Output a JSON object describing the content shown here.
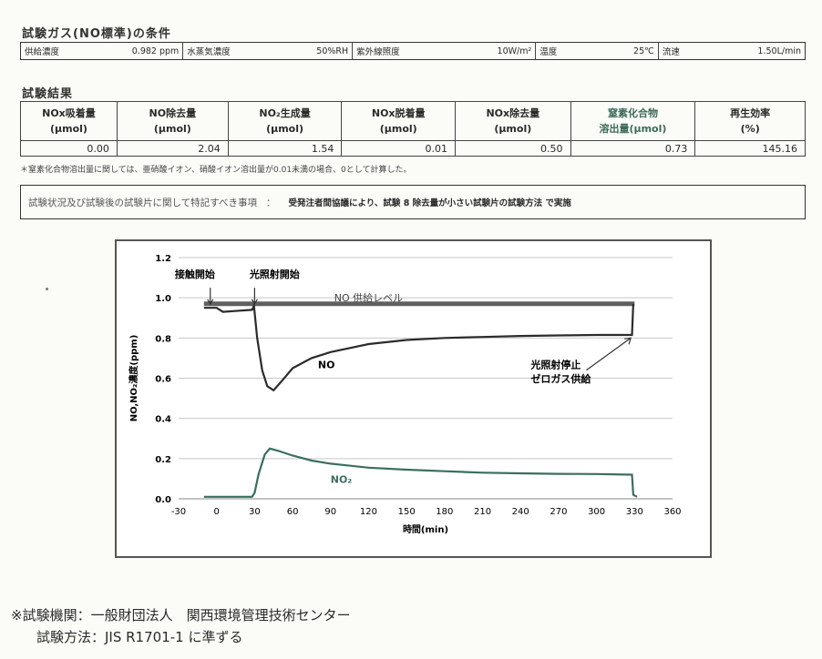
{
  "section_conditions_title": "試験ガス(NO標準)の条件",
  "conditions": [
    {
      "label": "供給濃度",
      "value": "0.982 ppm"
    },
    {
      "label": "水蒸気濃度",
      "value": "50%RH"
    },
    {
      "label": "紫外線照度",
      "value": "10W/m²"
    },
    {
      "label": "温度",
      "value": "25℃"
    },
    {
      "label": "流速",
      "value": "1.50L/min"
    }
  ],
  "section_results_title": "試験結果",
  "results": {
    "headers": [
      {
        "l1": "NOx吸着量",
        "l2": "(μmol)"
      },
      {
        "l1": "NO除去量",
        "l2": "(μmol)"
      },
      {
        "l1": "NO₂生成量",
        "l2": "(μmol)"
      },
      {
        "l1": "NOx脱着量",
        "l2": "(μmol)"
      },
      {
        "l1": "NOx除去量",
        "l2": "(μmol)"
      },
      {
        "l1": "窒素化合物",
        "l2": "溶出量(μmol)"
      },
      {
        "l1": "再生効率",
        "l2": "(%)"
      }
    ],
    "values": [
      "0.00",
      "2.04",
      "1.54",
      "0.01",
      "0.50",
      "0.73",
      "145.16"
    ]
  },
  "footnote": "＊窒素化合物溶出量に関しては、亜硝酸イオン、硝酸イオン溶出量が0.01未満の場合、0として計算した。",
  "special_notes": {
    "label": "試験状況及び試験後の試験片に関して特記すべき事項",
    "value": "受発注者間協議により、試験 8 除去量が小さい試験片の試験方法 で実施"
  },
  "chart_data": {
    "type": "line",
    "xlabel": "時間(min)",
    "ylabel": "NO,NO₂濃度(ppm)",
    "xlim": [
      -30,
      360
    ],
    "ylim": [
      0,
      1.2
    ],
    "x_ticks": [
      "-30",
      "0",
      "30",
      "60",
      "90",
      "120",
      "150",
      "180",
      "210",
      "240",
      "270",
      "300",
      "330",
      "360"
    ],
    "y_ticks": [
      "0.0",
      "0.2",
      "0.4",
      "0.6",
      "0.8",
      "1.0",
      "1.2"
    ],
    "grid": true,
    "series": [
      {
        "name": "NO",
        "color": "#2b2b2b",
        "x": [
          -10,
          0,
          5,
          28,
          29.5,
          32,
          36,
          40,
          45,
          52,
          60,
          75,
          90,
          120,
          150,
          180,
          210,
          240,
          270,
          300,
          328,
          329
        ],
        "y": [
          0.95,
          0.95,
          0.93,
          0.94,
          0.96,
          0.8,
          0.64,
          0.56,
          0.54,
          0.59,
          0.65,
          0.7,
          0.73,
          0.77,
          0.79,
          0.8,
          0.805,
          0.81,
          0.813,
          0.815,
          0.815,
          0.97
        ]
      },
      {
        "name": "NO₂",
        "color": "#3a6e60",
        "x": [
          -10,
          0,
          28,
          30,
          33,
          38,
          42,
          48,
          60,
          75,
          90,
          120,
          150,
          180,
          210,
          240,
          270,
          300,
          328,
          329,
          332
        ],
        "y": [
          0.01,
          0.01,
          0.01,
          0.03,
          0.12,
          0.22,
          0.25,
          0.24,
          0.215,
          0.19,
          0.175,
          0.155,
          0.145,
          0.137,
          0.13,
          0.127,
          0.124,
          0.123,
          0.12,
          0.02,
          0.01
        ]
      }
    ],
    "supply_level": {
      "label": "NO 供給レベル",
      "x": [
        -10,
        330
      ],
      "y": 0.97,
      "color": "#606060"
    },
    "annotations": [
      {
        "id": "contact",
        "text": "接触開始",
        "x": -5,
        "y": 0.95
      },
      {
        "id": "light-on",
        "text": "光照射開始",
        "x": 30,
        "y": 0.95
      },
      {
        "id": "light-off",
        "text": "光照射停止",
        "x": 328,
        "y": 0.82
      },
      {
        "id": "zero-gas",
        "text": "ゼロガス供給",
        "x": 328,
        "y": 0.82
      }
    ]
  },
  "footer": {
    "line1": "※試験機関：一般財団法人　関西環境管理技術センター",
    "line2": "試験方法：JIS R1701-1 に準ずる"
  }
}
